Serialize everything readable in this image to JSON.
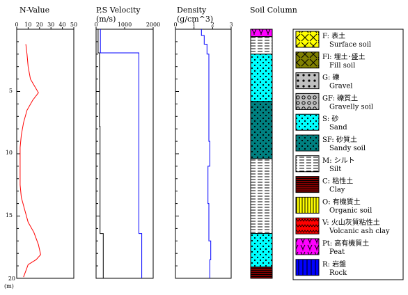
{
  "titles": {
    "nvalue": "N-Value",
    "velocity": "P,S Velocity",
    "velocity_unit": "(m/s)",
    "density": "Density",
    "density_unit": "(g/cm^3)",
    "soil": "Soil Column"
  },
  "depth_unit": "(m)",
  "depth_ticks": [
    "5",
    "10",
    "15",
    "20"
  ],
  "colors": {
    "nvalue_line": "#ff0000",
    "velocity_line": "#0000ff",
    "s_velocity_line": "#000000",
    "density_line": "#0000ff",
    "surface_soil": "#ffff00",
    "fill_soil": "#808000",
    "gravel": "#c0c0c0",
    "gravelly_soil": "#c0c0c0",
    "sand": "#00ffff",
    "sandy_soil": "#008080",
    "silt": "#ffffff",
    "clay": "#800000",
    "organic_soil": "#ffff00",
    "volcanic_ash_clay": "#ff0000",
    "peat": "#ff00ff",
    "rock": "#0000ff"
  },
  "chart_data": [
    {
      "type": "line",
      "title": "N-Value",
      "xlim": [
        0,
        50
      ],
      "xticks": [
        "0",
        "10",
        "20",
        "30",
        "40",
        "50"
      ],
      "ylim": [
        0,
        20
      ],
      "y_inverted": true,
      "series": [
        {
          "points": [
            [
              8,
              1.2
            ],
            [
              9,
              2
            ],
            [
              10,
              3
            ],
            [
              12,
              4
            ],
            [
              19,
              5.1
            ],
            [
              14,
              5.7
            ],
            [
              9,
              6.5
            ],
            [
              6,
              7.5
            ],
            [
              4,
              8.5
            ],
            [
              3,
              9.5
            ],
            [
              3,
              10.5
            ],
            [
              3,
              11.5
            ],
            [
              3,
              12.5
            ],
            [
              4,
              13.5
            ],
            [
              7,
              14.5
            ],
            [
              10,
              15.5
            ],
            [
              15,
              16.3
            ],
            [
              19,
              17.3
            ],
            [
              21,
              18.1
            ],
            [
              17,
              18.5
            ],
            [
              10,
              18.9
            ],
            [
              8,
              19.4
            ],
            [
              6,
              19.9
            ]
          ]
        }
      ]
    },
    {
      "type": "line",
      "title": "P,S Velocity",
      "xlabel": "(m/s)",
      "xlim": [
        0,
        2000
      ],
      "xticks": [
        "0",
        "1000",
        "2000"
      ],
      "ylim": [
        0,
        20
      ],
      "y_inverted": true,
      "series": [
        {
          "color_key": "velocity_line",
          "points": [
            [
              150,
              0
            ],
            [
              150,
              1.9
            ],
            [
              1500,
              1.9
            ],
            [
              1500,
              16.4
            ],
            [
              1600,
              16.4
            ],
            [
              1600,
              20
            ]
          ]
        },
        {
          "color_key": "s_velocity_line",
          "points": [
            [
              70,
              0
            ],
            [
              70,
              1.9
            ],
            [
              120,
              1.9
            ],
            [
              120,
              7.8
            ],
            [
              140,
              7.8
            ],
            [
              140,
              16.4
            ],
            [
              250,
              16.4
            ],
            [
              250,
              20
            ]
          ]
        }
      ]
    },
    {
      "type": "line",
      "title": "Density",
      "xlabel": "(g/cm^3)",
      "xlim": [
        0,
        3
      ],
      "xticks": [
        "0",
        "1",
        "2",
        "3"
      ],
      "ylim": [
        0,
        20
      ],
      "y_inverted": true,
      "series": [
        {
          "points": [
            [
              1.4,
              0
            ],
            [
              1.4,
              0.5
            ],
            [
              1.55,
              0.5
            ],
            [
              1.55,
              1.2
            ],
            [
              1.7,
              1.2
            ],
            [
              1.7,
              2.0
            ],
            [
              1.8,
              2.0
            ],
            [
              1.8,
              3.5
            ],
            [
              1.8,
              5.0
            ],
            [
              1.8,
              9.0
            ],
            [
              1.85,
              9.0
            ],
            [
              1.85,
              11.0
            ],
            [
              1.75,
              11.0
            ],
            [
              1.75,
              14.0
            ],
            [
              1.8,
              14.0
            ],
            [
              1.8,
              17.0
            ],
            [
              1.9,
              17.0
            ],
            [
              1.9,
              18.5
            ],
            [
              1.85,
              18.5
            ],
            [
              1.85,
              20
            ]
          ]
        }
      ]
    },
    {
      "type": "table",
      "title": "Soil Column",
      "layers": [
        {
          "code": "Pt",
          "top": 0.0,
          "bottom": 0.6
        },
        {
          "code": "M",
          "top": 0.6,
          "bottom": 2.0
        },
        {
          "code": "S",
          "top": 2.0,
          "bottom": 5.8
        },
        {
          "code": "SF",
          "top": 5.8,
          "bottom": 10.4
        },
        {
          "code": "M",
          "top": 10.4,
          "bottom": 16.4
        },
        {
          "code": "S",
          "top": 16.4,
          "bottom": 19.1
        },
        {
          "code": "C",
          "top": 19.1,
          "bottom": 20.0
        }
      ]
    }
  ],
  "legend": [
    {
      "pattern": "surface",
      "jp": "F: 表土",
      "en": "Surface soil"
    },
    {
      "pattern": "fill",
      "jp": "Fl: 埋土･盛土",
      "en": "Fill soil"
    },
    {
      "pattern": "gravel",
      "jp": "G: 礫",
      "en": "Gravel"
    },
    {
      "pattern": "gravelly",
      "jp": "GF: 礫質土",
      "en": "Gravelly soil"
    },
    {
      "pattern": "sand",
      "jp": "S: 砂",
      "en": "Sand"
    },
    {
      "pattern": "sandy",
      "jp": "SF: 砂質土",
      "en": "Sandy soil"
    },
    {
      "pattern": "silt",
      "jp": "M: シルト",
      "en": "Silt"
    },
    {
      "pattern": "clay",
      "jp": "C: 粘性土",
      "en": "Clay"
    },
    {
      "pattern": "organic",
      "jp": "O: 有機質土",
      "en": "Organic soil"
    },
    {
      "pattern": "volcanic",
      "jp": "V: 火山灰質粘性土",
      "en": "Volcanic ash clay"
    },
    {
      "pattern": "peat",
      "jp": "Pt: 高有機質土",
      "en": "Peat"
    },
    {
      "pattern": "rock",
      "jp": "R: 岩盤",
      "en": "Rock"
    }
  ]
}
